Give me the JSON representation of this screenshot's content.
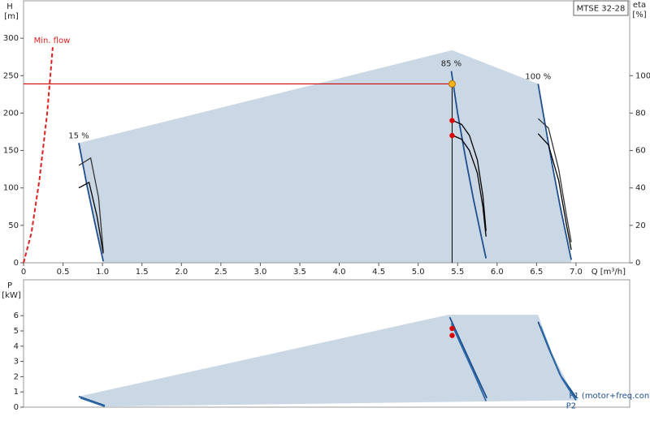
{
  "chart_data": [
    {
      "type": "pump-curve",
      "xlabel": "Q [m³/h]",
      "ylabel": [
        "H",
        "[m]"
      ],
      "y2label": [
        "eta",
        "[%]"
      ],
      "legend": "MTSE 32-28",
      "xlim": [
        0,
        7.68
      ],
      "ylim": [
        0,
        350
      ],
      "y2lim": [
        0,
        140
      ],
      "xticks": [
        0,
        0.5,
        {
          "value": 1,
          "label": "1.0"
        },
        1.5,
        {
          "value": 2,
          "label": "2.0"
        },
        2.5,
        {
          "value": 3,
          "label": "3.0"
        },
        3.5,
        {
          "value": 4,
          "label": "4.0"
        },
        4.5,
        {
          "value": 5,
          "label": "5.0"
        },
        5.5,
        {
          "value": 6,
          "label": "6.0"
        },
        6.5,
        {
          "value": 7,
          "label": "7.0"
        }
      ],
      "yticks": [
        0,
        50,
        100,
        150,
        200,
        250,
        300
      ],
      "y2ticks": [
        0,
        20,
        40,
        60,
        80,
        100
      ],
      "envelope": {
        "color": "#cad8e5",
        "x": [
          0.7,
          5.43,
          6.52,
          6.6,
          6.7,
          6.8,
          6.94,
          6.94,
          1.01,
          0.9,
          0.8
        ],
        "y": [
          160,
          284,
          239,
          190,
          130,
          75,
          4,
          0,
          0,
          55,
          105
        ]
      },
      "series": [
        {
          "name": "15 %",
          "color": "#1f4f8f",
          "x": [
            0.7,
            0.8,
            0.9,
            1.01
          ],
          "y": [
            160,
            105,
            55,
            2
          ]
        },
        {
          "name": "85 %",
          "color": "#1f4f8f",
          "x": [
            5.42,
            5.5,
            5.6,
            5.7,
            5.8,
            5.86
          ],
          "y": [
            256,
            200,
            140,
            85,
            35,
            6
          ]
        },
        {
          "name": "100 %",
          "color": "#1f4f8f",
          "x": [
            6.52,
            6.6,
            6.7,
            6.8,
            6.94
          ],
          "y": [
            239,
            190,
            130,
            75,
            4
          ]
        },
        {
          "axis": "y2",
          "color": "#333333",
          "x": [
            0.7,
            0.85,
            0.95,
            1.01
          ],
          "y": [
            52,
            56,
            35,
            6
          ]
        },
        {
          "axis": "y2",
          "color": "#000000",
          "x": [
            0.7,
            0.83,
            0.93,
            1.01
          ],
          "y": [
            40,
            43,
            25,
            5
          ]
        },
        {
          "axis": "y2",
          "color": "#000000",
          "x": [
            5.44,
            5.55,
            5.65,
            5.75,
            5.82,
            5.86
          ],
          "y": [
            76,
            74,
            68,
            55,
            36,
            17
          ]
        },
        {
          "axis": "y2",
          "color": "#000000",
          "x": [
            5.44,
            5.55,
            5.65,
            5.75,
            5.82,
            5.86
          ],
          "y": [
            68,
            66,
            60,
            48,
            30,
            14
          ]
        },
        {
          "axis": "y2",
          "color": "#333333",
          "x": [
            6.52,
            6.65,
            6.78,
            6.88,
            6.94
          ],
          "y": [
            77,
            72,
            50,
            25,
            11
          ]
        },
        {
          "axis": "y2",
          "color": "#000000",
          "x": [
            6.52,
            6.65,
            6.78,
            6.88,
            6.94
          ],
          "y": [
            69,
            63,
            44,
            20,
            7
          ]
        }
      ],
      "min_flow": {
        "name": "Min. flow",
        "color": "#e02020",
        "x": [
          0,
          0.1,
          0.2,
          0.3,
          0.37
        ],
        "y": [
          0,
          40,
          110,
          200,
          288
        ]
      },
      "duty_point": {
        "x": 5.43,
        "y": 239,
        "color": "#f5b21a"
      },
      "markers": {
        "axis": "y2",
        "color": "#e00000",
        "x": [
          5.43,
          5.43
        ],
        "y": [
          76,
          68
        ]
      }
    },
    {
      "type": "power-curve",
      "ylabel": [
        "P",
        "[kW]"
      ],
      "xlim": [
        0,
        7.68
      ],
      "ylim": [
        0,
        8.35
      ],
      "yticks": [
        0,
        1,
        2,
        3,
        4,
        5,
        6
      ],
      "envelope": {
        "color": "#cad8e5",
        "x": [
          0.7,
          5.38,
          6.52,
          6.7,
          6.9,
          7.03,
          1.05
        ],
        "y": [
          0.7,
          6.06,
          6.06,
          3.5,
          1.5,
          0.45,
          0.05
        ]
      },
      "series": [
        {
          "color": "#1f4f8f",
          "x": [
            0.7,
            1.03
          ],
          "y": [
            0.7,
            0.1
          ]
        },
        {
          "color": "#2e6aa8",
          "x": [
            0.72,
            1.03
          ],
          "y": [
            0.6,
            0.05
          ]
        },
        {
          "color": "#1f4f8f",
          "x": [
            5.4,
            5.55,
            5.7,
            5.87
          ],
          "y": [
            5.9,
            4.2,
            2.5,
            0.6
          ]
        },
        {
          "color": "#2e6aa8",
          "x": [
            5.42,
            5.55,
            5.7,
            5.86
          ],
          "y": [
            5.5,
            4.0,
            2.3,
            0.4
          ]
        },
        {
          "name": "P1 (motor+freq.converter)",
          "color": "#1f4f8f",
          "x": [
            6.52,
            6.65,
            6.8,
            7.0
          ],
          "y": [
            5.6,
            3.9,
            2.1,
            0.65
          ]
        },
        {
          "name": "P2",
          "color": "#2e6aa8",
          "x": [
            6.55,
            6.68,
            6.82,
            7.0
          ],
          "y": [
            5.3,
            3.6,
            1.9,
            0.45
          ]
        }
      ],
      "markers": {
        "color": "#e00000",
        "x": [
          5.43,
          5.43
        ],
        "y": [
          5.16,
          4.7
        ]
      }
    }
  ]
}
